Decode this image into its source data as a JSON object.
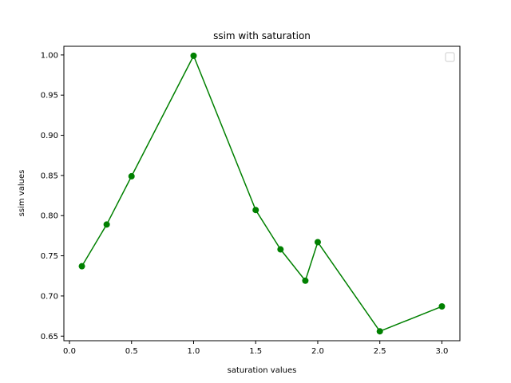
{
  "chart_data": {
    "type": "line",
    "title": "ssim with saturation",
    "xlabel": "saturation values",
    "ylabel": "ssim values",
    "xlim": [
      -0.045,
      3.145
    ],
    "ylim": [
      0.6443,
      1.0108
    ],
    "xticks": [
      0.0,
      0.5,
      1.0,
      1.5,
      2.0,
      2.5,
      3.0
    ],
    "xtick_labels": [
      "0.0",
      "0.5",
      "1.0",
      "1.5",
      "2.0",
      "2.5",
      "3.0"
    ],
    "yticks": [
      0.65,
      0.7,
      0.75,
      0.8,
      0.85,
      0.9,
      0.95,
      1.0
    ],
    "ytick_labels": [
      "0.65",
      "0.70",
      "0.75",
      "0.80",
      "0.85",
      "0.90",
      "0.95",
      "1.00"
    ],
    "grid": false,
    "legend": {
      "placement": "top-right",
      "entries": []
    },
    "series": [
      {
        "color": "#008000",
        "marker": "circle",
        "x": [
          0.1,
          0.3,
          0.5,
          1.0,
          1.5,
          1.7,
          1.9,
          2.0,
          2.5,
          3.0
        ],
        "y": [
          0.737,
          0.789,
          0.849,
          0.999,
          0.807,
          0.758,
          0.719,
          0.767,
          0.656,
          0.687
        ]
      }
    ]
  }
}
